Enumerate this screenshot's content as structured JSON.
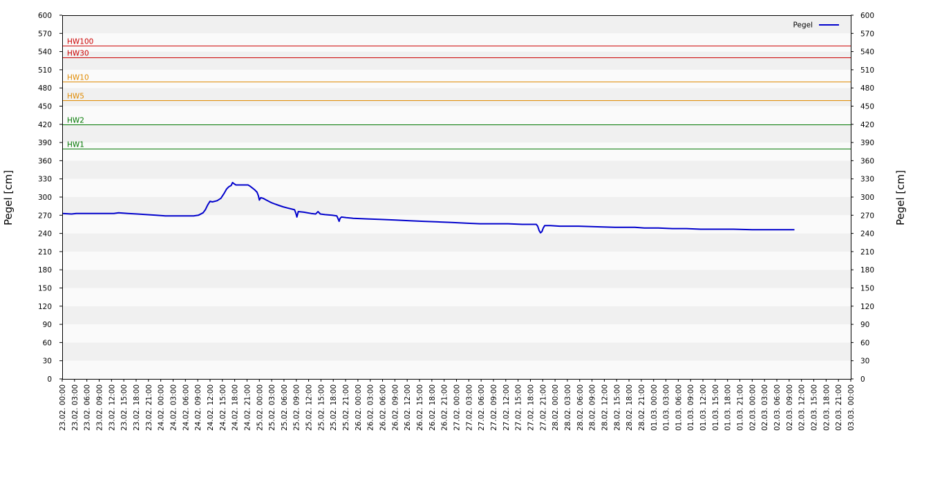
{
  "chart_data": {
    "type": "line",
    "ylabel_left": "Pegel [cm]",
    "ylabel_right": "Pegel [cm]",
    "ylim": [
      0,
      600
    ],
    "yticks": [
      0,
      30,
      60,
      90,
      120,
      150,
      180,
      210,
      240,
      270,
      300,
      330,
      360,
      390,
      420,
      450,
      480,
      510,
      540,
      570,
      600
    ],
    "xlim_hours": [
      0,
      168
    ],
    "xtick_labels": [
      "23.02. 00:00",
      "23.02. 03:00",
      "23.02. 06:00",
      "23.02. 09:00",
      "23.02. 12:00",
      "23.02. 15:00",
      "23.02. 18:00",
      "23.02. 21:00",
      "24.02. 00:00",
      "24.02. 03:00",
      "24.02. 06:00",
      "24.02. 09:00",
      "24.02. 12:00",
      "24.02. 15:00",
      "24.02. 18:00",
      "24.02. 21:00",
      "25.02. 00:00",
      "25.02. 03:00",
      "25.02. 06:00",
      "25.02. 09:00",
      "25.02. 12:00",
      "25.02. 15:00",
      "25.02. 18:00",
      "25.02. 21:00",
      "26.02. 00:00",
      "26.02. 03:00",
      "26.02. 06:00",
      "26.02. 09:00",
      "26.02. 12:00",
      "26.02. 15:00",
      "26.02. 18:00",
      "26.02. 21:00",
      "27.02. 00:00",
      "27.02. 03:00",
      "27.02. 06:00",
      "27.02. 09:00",
      "27.02. 12:00",
      "27.02. 15:00",
      "27.02. 18:00",
      "27.02. 21:00",
      "28.02. 00:00",
      "28.02. 03:00",
      "28.02. 06:00",
      "28.02. 09:00",
      "28.02. 12:00",
      "28.02. 15:00",
      "28.02. 18:00",
      "28.02. 21:00",
      "01.03. 00:00",
      "01.03. 03:00",
      "01.03. 06:00",
      "01.03. 09:00",
      "01.03. 12:00",
      "01.03. 15:00",
      "01.03. 18:00",
      "01.03. 21:00",
      "02.03. 00:00",
      "02.03. 03:00",
      "02.03. 06:00",
      "02.03. 09:00",
      "02.03. 12:00",
      "02.03. 15:00",
      "02.03. 18:00",
      "02.03. 21:00",
      "03.03. 00:00"
    ],
    "legend": {
      "label": "Pegel",
      "position": "top-right",
      "color": "#0000cc"
    },
    "grid": "alternating horizontal bands",
    "thresholds": [
      {
        "label": "HW100",
        "value": 550,
        "color": "#cc0000"
      },
      {
        "label": "HW30",
        "value": 530,
        "color": "#cc0000"
      },
      {
        "label": "HW10",
        "value": 490,
        "color": "#e08a00"
      },
      {
        "label": "HW5",
        "value": 460,
        "color": "#e08a00"
      },
      {
        "label": "HW2",
        "value": 420,
        "color": "#007700"
      },
      {
        "label": "HW1",
        "value": 380,
        "color": "#007700"
      }
    ],
    "series": [
      {
        "name": "Pegel",
        "color": "#0000cc",
        "points": [
          [
            0,
            273
          ],
          [
            2,
            272
          ],
          [
            3,
            273
          ],
          [
            6,
            273
          ],
          [
            9,
            273
          ],
          [
            11,
            273
          ],
          [
            12,
            274
          ],
          [
            14,
            273
          ],
          [
            16,
            272
          ],
          [
            18,
            271
          ],
          [
            20,
            270
          ],
          [
            22,
            269
          ],
          [
            24,
            269
          ],
          [
            27,
            269
          ],
          [
            28,
            269
          ],
          [
            29,
            270
          ],
          [
            30,
            274
          ],
          [
            30.5,
            279
          ],
          [
            31,
            287
          ],
          [
            31.5,
            293
          ],
          [
            32,
            292
          ],
          [
            33,
            294
          ],
          [
            33.8,
            298
          ],
          [
            34.5,
            306
          ],
          [
            35,
            313
          ],
          [
            35.5,
            317
          ],
          [
            36,
            319
          ],
          [
            36.3,
            324
          ],
          [
            36.6,
            322
          ],
          [
            37,
            320
          ],
          [
            38,
            320
          ],
          [
            39,
            320
          ],
          [
            39.6,
            320
          ],
          [
            40,
            318
          ],
          [
            40.5,
            315
          ],
          [
            41,
            312
          ],
          [
            41.5,
            308
          ],
          [
            41.8,
            302
          ],
          [
            42,
            295
          ],
          [
            42.3,
            299
          ],
          [
            42.8,
            298
          ],
          [
            43.5,
            295
          ],
          [
            44.5,
            291
          ],
          [
            45.5,
            288
          ],
          [
            47,
            284
          ],
          [
            48,
            282
          ],
          [
            49,
            280
          ],
          [
            49.5,
            279
          ],
          [
            49.8,
            273
          ],
          [
            50,
            267
          ],
          [
            50.3,
            276
          ],
          [
            51.5,
            275
          ],
          [
            53,
            273
          ],
          [
            54,
            272
          ],
          [
            54.5,
            276
          ],
          [
            55,
            272
          ],
          [
            56,
            271
          ],
          [
            57.5,
            270
          ],
          [
            58.5,
            269
          ],
          [
            58.8,
            264
          ],
          [
            59,
            260
          ],
          [
            59.2,
            265
          ],
          [
            59.5,
            267
          ],
          [
            60.5,
            266
          ],
          [
            62,
            265
          ],
          [
            65,
            264
          ],
          [
            68,
            263
          ],
          [
            71,
            262
          ],
          [
            74,
            261
          ],
          [
            77,
            260
          ],
          [
            80,
            259
          ],
          [
            83,
            258
          ],
          [
            86,
            257
          ],
          [
            89,
            256
          ],
          [
            92,
            256
          ],
          [
            95,
            256
          ],
          [
            98,
            255
          ],
          [
            100,
            255
          ],
          [
            101,
            255
          ],
          [
            101.3,
            252
          ],
          [
            101.6,
            245
          ],
          [
            101.9,
            241
          ],
          [
            102.2,
            243
          ],
          [
            102.5,
            249
          ],
          [
            102.8,
            253
          ],
          [
            104,
            253
          ],
          [
            106,
            252
          ],
          [
            110,
            252
          ],
          [
            114,
            251
          ],
          [
            118,
            250
          ],
          [
            122,
            250
          ],
          [
            124,
            249
          ],
          [
            127,
            249
          ],
          [
            130,
            248
          ],
          [
            133,
            248
          ],
          [
            136,
            247
          ],
          [
            140,
            247
          ],
          [
            143,
            247
          ],
          [
            147,
            246
          ],
          [
            150,
            246
          ],
          [
            156,
            246
          ]
        ]
      }
    ]
  }
}
